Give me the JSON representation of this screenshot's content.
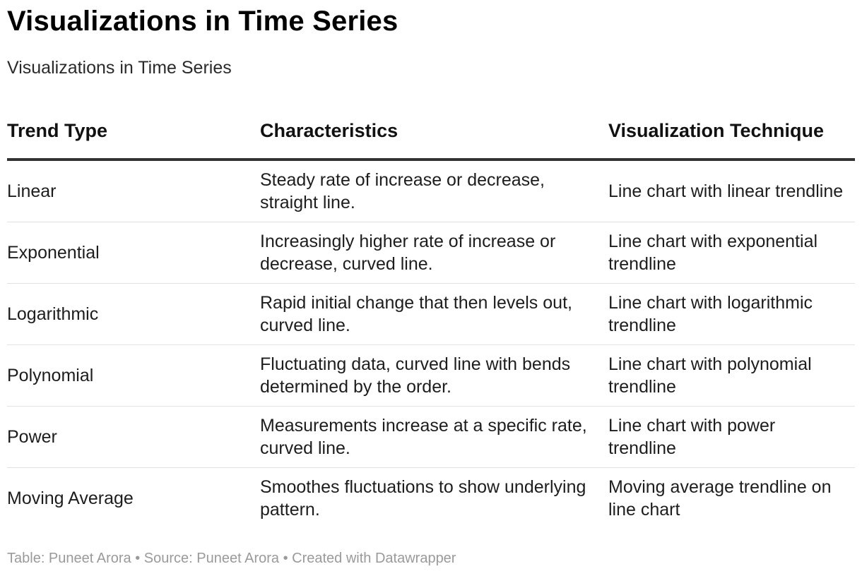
{
  "header": {
    "title": "Visualizations in Time Series",
    "subtitle": "Visualizations in Time Series"
  },
  "table": {
    "columns": [
      "Trend Type",
      "Characteristics",
      "Visualization Technique"
    ],
    "rows": [
      [
        "Linear",
        "Steady rate of increase or decrease, straight line.",
        "Line chart with linear trendline"
      ],
      [
        "Exponential",
        "Increasingly higher rate of increase or decrease, curved line.",
        "Line chart with exponential trendline"
      ],
      [
        "Logarithmic",
        "Rapid initial change that then levels out, curved line.",
        "Line chart with logarithmic trendline"
      ],
      [
        "Polynomial",
        "Fluctuating data, curved line with bends determined by the order.",
        "Line chart with polynomial trendline"
      ],
      [
        "Power",
        "Measurements increase at a specific rate, curved line.",
        "Line chart with power trendline"
      ],
      [
        "Moving Average",
        "Smoothes fluctuations to show underlying pattern.",
        "Moving average trendline on line chart"
      ]
    ]
  },
  "footer": {
    "text": "Table: Puneet Arora • Source: Puneet Arora • Created with Datawrapper"
  }
}
